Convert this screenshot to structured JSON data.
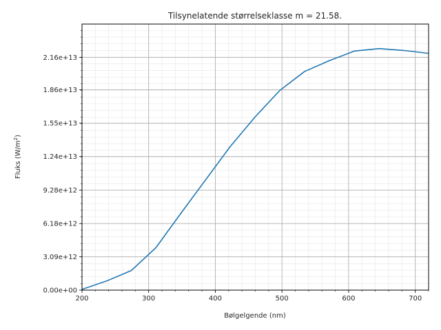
{
  "chart_data": {
    "type": "line",
    "title": "Tilsynelatende størrelseklasse m = 21.58.",
    "xlabel": "Bølgelgende (nm)",
    "ylabel_main": "Fluks (W/m",
    "ylabel_sup": "2",
    "ylabel_close": ")",
    "xlim": [
      200,
      720
    ],
    "ylim": [
      0,
      24700000000000
    ],
    "xticks": [
      200,
      300,
      400,
      500,
      600,
      700
    ],
    "xtick_labels": [
      "200",
      "300",
      "400",
      "500",
      "600",
      "700"
    ],
    "yticks": [
      0,
      3090000000000,
      6180000000000,
      9280000000000,
      12400000000000,
      15500000000000,
      18600000000000,
      21600000000000
    ],
    "ytick_labels": [
      "0.00e+00",
      "3.09e+12",
      "6.18e+12",
      "9.28e+12",
      "1.24e+13",
      "1.55e+13",
      "1.86e+13",
      "2.16e+13"
    ],
    "grid": true,
    "minor_grid": true,
    "line_color": "#1f77b4",
    "series": [
      {
        "x": [
          200,
          237,
          274,
          311,
          348,
          385,
          422,
          460,
          497,
          534,
          571,
          609,
          646,
          683,
          720
        ],
        "y": [
          70000000000,
          850000000000,
          1820000000000,
          3950000000000,
          7100000000000,
          10200000000000,
          13300000000000,
          16100000000000,
          18550000000000,
          20300000000000,
          21300000000000,
          22200000000000,
          22420000000000,
          22250000000000,
          21980000000000
        ]
      }
    ]
  }
}
